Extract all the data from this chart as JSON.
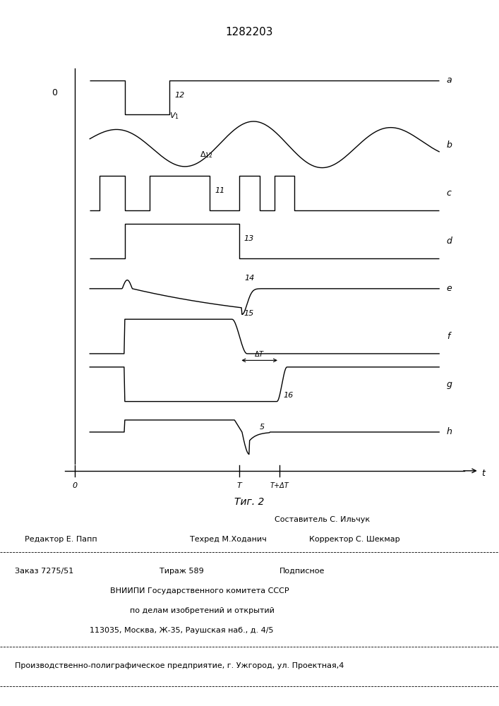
{
  "title": "1282203",
  "fig_caption": "Τиг. 2",
  "background_color": "#ffffff",
  "line_color": "#000000",
  "line_width": 1.0,
  "panel_labels": [
    "a",
    "b",
    "c",
    "d",
    "e",
    "f",
    "g",
    "h"
  ],
  "x_tick_labels": [
    "0",
    "T",
    "T+ΔT",
    "t"
  ],
  "left_label": "0",
  "footer": {
    "sestavitel": "Составитель С. Ильчук",
    "redaktor": "Редактор Е. Папп",
    "tehred": "Техред М.Ходанич",
    "korrektor": "Корректор С. Шекмар",
    "zakaz": "Заказ 7275/51",
    "tirazh": "Тираж 589",
    "podpisnoe": "Подписное",
    "vniipii": "ВНИИПИ Государственного комитета СССР",
    "po_delam": "по делам изобретений и открытий",
    "address": "113035, Москва, Ж-35, Раушская наб., д. 4/5",
    "enterprise": "Производственно-полиграфическое предприятие, г. Ужгород, ул. Проектная,4"
  }
}
